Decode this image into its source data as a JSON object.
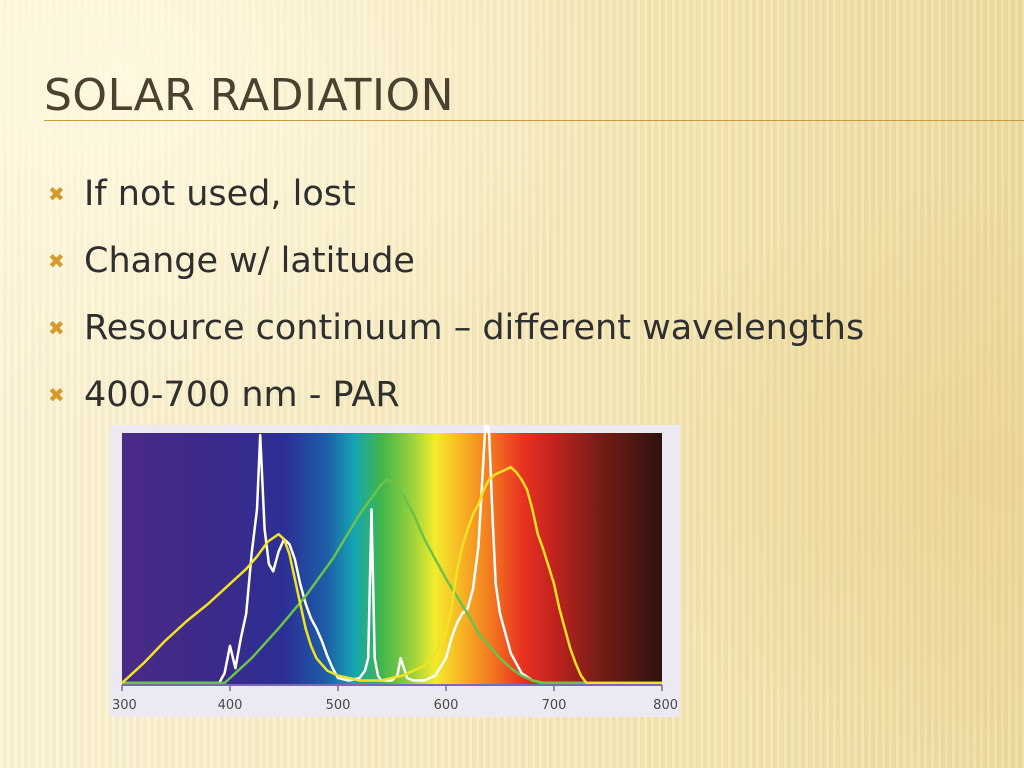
{
  "slide": {
    "title": "SOLAR RADIATION",
    "bullet_icon": "cross-bullet-icon",
    "accent_color": "#d69a2a",
    "bullets": [
      {
        "text": "If not used, lost"
      },
      {
        "text": "Change w/ latitude"
      },
      {
        "text": "Resource continuum – different wavelengths"
      },
      {
        "text": "400-700 nm - PAR"
      }
    ]
  },
  "chart_data": {
    "type": "line",
    "title": "",
    "xlabel": "",
    "ylabel": "",
    "xlim": [
      300,
      800
    ],
    "ylim": [
      0,
      100
    ],
    "x_ticks": [
      "300",
      "400",
      "500",
      "600",
      "700",
      "800"
    ],
    "background": "visible spectrum gradient",
    "grid": false,
    "series": [
      {
        "color": "#ffffff",
        "x": [
          300,
          390,
          395,
          400,
          405,
          410,
          415,
          420,
          425,
          428,
          432,
          436,
          440,
          445,
          450,
          455,
          460,
          465,
          470,
          475,
          480,
          485,
          490,
          495,
          500,
          510,
          520,
          525,
          528,
          531,
          534,
          537,
          540,
          545,
          550,
          555,
          558,
          561,
          564,
          570,
          580,
          590,
          600,
          605,
          610,
          615,
          620,
          625,
          630,
          634,
          637,
          640,
          643,
          646,
          650,
          660,
          670,
          680,
          690,
          700,
          800
        ],
        "y": [
          0,
          0,
          4,
          15,
          6,
          18,
          28,
          52,
          70,
          100,
          62,
          48,
          45,
          53,
          58,
          56,
          50,
          40,
          32,
          26,
          22,
          17,
          11,
          6,
          2,
          1,
          2,
          5,
          10,
          70,
          10,
          3,
          1,
          1,
          1,
          3,
          10,
          6,
          2,
          1,
          1,
          3,
          10,
          18,
          24,
          28,
          30,
          38,
          55,
          85,
          110,
          100,
          68,
          40,
          28,
          12,
          4,
          1,
          0,
          0,
          0
        ]
      },
      {
        "color": "#6cc24a",
        "x": [
          300,
          395,
          420,
          445,
          470,
          495,
          520,
          530,
          540,
          545,
          550,
          560,
          570,
          580,
          590,
          600,
          610,
          620,
          630,
          640,
          650,
          660,
          670,
          680,
          690,
          700,
          800
        ],
        "y": [
          0,
          0,
          10,
          22,
          35,
          50,
          68,
          74,
          80,
          82,
          81,
          76,
          68,
          58,
          50,
          42,
          35,
          28,
          20,
          15,
          10,
          6,
          3,
          1,
          0,
          0,
          0
        ]
      },
      {
        "color": "#f2e224",
        "x": [
          300,
          320,
          340,
          360,
          380,
          400,
          415,
          425,
          435,
          445,
          450,
          455,
          460,
          465,
          470,
          475,
          480,
          490,
          500,
          510,
          520,
          530,
          540,
          550,
          560,
          570,
          580,
          590,
          600,
          605,
          610,
          615,
          620,
          625,
          630,
          635,
          640,
          645,
          650,
          655,
          660,
          665,
          670,
          675,
          680,
          685,
          690,
          695,
          700,
          705,
          710,
          715,
          720,
          725,
          730,
          800
        ],
        "y": [
          0,
          8,
          17,
          25,
          32,
          40,
          46,
          51,
          57,
          60,
          58,
          52,
          42,
          32,
          22,
          15,
          10,
          5,
          3,
          2,
          1,
          1,
          1,
          2,
          3,
          5,
          7,
          12,
          20,
          30,
          45,
          55,
          62,
          68,
          72,
          78,
          82,
          84,
          85,
          86,
          87,
          85,
          82,
          78,
          70,
          60,
          54,
          47,
          40,
          30,
          22,
          14,
          8,
          3,
          0,
          0
        ]
      }
    ]
  }
}
